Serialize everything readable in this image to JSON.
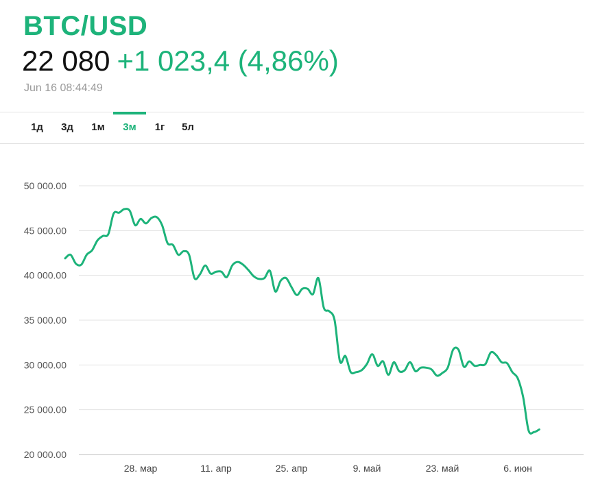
{
  "header": {
    "symbol": "BTC/USD",
    "price": "22 080",
    "change": "+1 023,4 (4,86%)",
    "timestamp": "Jun 16 08:44:49"
  },
  "tabs": [
    {
      "label": "1д",
      "active": false
    },
    {
      "label": "3д",
      "active": false
    },
    {
      "label": "1м",
      "active": false
    },
    {
      "label": "3м",
      "active": true
    },
    {
      "label": "1г",
      "active": false
    },
    {
      "label": "5л",
      "active": false
    }
  ],
  "colors": {
    "accent": "#1db37a",
    "price_text": "#111111",
    "timestamp": "#9a9a9a"
  },
  "chart_data": {
    "type": "line",
    "title": "",
    "xlabel": "",
    "ylabel": "",
    "ylim": [
      20000,
      50000
    ],
    "grid": true,
    "y_ticks": [
      "50 000.00",
      "45 000.00",
      "40 000.00",
      "35 000.00",
      "30 000.00",
      "25 000.00",
      "20 000.00"
    ],
    "y_tick_values": [
      50000,
      45000,
      40000,
      35000,
      30000,
      25000,
      20000
    ],
    "x_ticks": [
      {
        "label": "28. мар",
        "day": 21
      },
      {
        "label": "11. апр",
        "day": 35
      },
      {
        "label": "25. апр",
        "day": 49
      },
      {
        "label": "9. май",
        "day": 63
      },
      {
        "label": "23. май",
        "day": 77
      },
      {
        "label": "6. июн",
        "day": 91
      }
    ],
    "series": [
      {
        "points": [
          [
            7,
            41900
          ],
          [
            8,
            42300
          ],
          [
            9,
            41300
          ],
          [
            10,
            41200
          ],
          [
            11,
            42300
          ],
          [
            12,
            42800
          ],
          [
            13,
            43900
          ],
          [
            14,
            44400
          ],
          [
            15,
            44600
          ],
          [
            16,
            46900
          ],
          [
            17,
            47000
          ],
          [
            18,
            47400
          ],
          [
            19,
            47200
          ],
          [
            20,
            45600
          ],
          [
            21,
            46300
          ],
          [
            22,
            45800
          ],
          [
            23,
            46400
          ],
          [
            24,
            46500
          ],
          [
            25,
            45600
          ],
          [
            26,
            43600
          ],
          [
            27,
            43400
          ],
          [
            28,
            42300
          ],
          [
            29,
            42700
          ],
          [
            30,
            42300
          ],
          [
            31,
            39700
          ],
          [
            32,
            40100
          ],
          [
            33,
            41100
          ],
          [
            34,
            40200
          ],
          [
            35,
            40400
          ],
          [
            36,
            40400
          ],
          [
            37,
            39800
          ],
          [
            38,
            41100
          ],
          [
            39,
            41500
          ],
          [
            40,
            41200
          ],
          [
            41,
            40600
          ],
          [
            42,
            39900
          ],
          [
            43,
            39600
          ],
          [
            44,
            39700
          ],
          [
            45,
            40500
          ],
          [
            46,
            38200
          ],
          [
            47,
            39400
          ],
          [
            48,
            39700
          ],
          [
            49,
            38700
          ],
          [
            50,
            37800
          ],
          [
            51,
            38500
          ],
          [
            52,
            38500
          ],
          [
            53,
            37900
          ],
          [
            54,
            39700
          ],
          [
            55,
            36400
          ],
          [
            56,
            36000
          ],
          [
            57,
            35000
          ],
          [
            58,
            30400
          ],
          [
            59,
            31000
          ],
          [
            60,
            29200
          ],
          [
            61,
            29200
          ],
          [
            62,
            29400
          ],
          [
            63,
            30100
          ],
          [
            64,
            31200
          ],
          [
            65,
            29900
          ],
          [
            66,
            30400
          ],
          [
            67,
            28900
          ],
          [
            68,
            30300
          ],
          [
            69,
            29300
          ],
          [
            70,
            29400
          ],
          [
            71,
            30300
          ],
          [
            72,
            29300
          ],
          [
            73,
            29700
          ],
          [
            74,
            29700
          ],
          [
            75,
            29500
          ],
          [
            76,
            28800
          ],
          [
            77,
            29100
          ],
          [
            78,
            29700
          ],
          [
            79,
            31700
          ],
          [
            80,
            31700
          ],
          [
            81,
            29800
          ],
          [
            82,
            30400
          ],
          [
            83,
            29900
          ],
          [
            84,
            30000
          ],
          [
            85,
            30100
          ],
          [
            86,
            31400
          ],
          [
            87,
            31100
          ],
          [
            88,
            30300
          ],
          [
            89,
            30200
          ],
          [
            90,
            29200
          ],
          [
            91,
            28500
          ],
          [
            92,
            26400
          ],
          [
            93,
            22700
          ],
          [
            94,
            22500
          ],
          [
            95,
            22800
          ]
        ]
      }
    ]
  }
}
